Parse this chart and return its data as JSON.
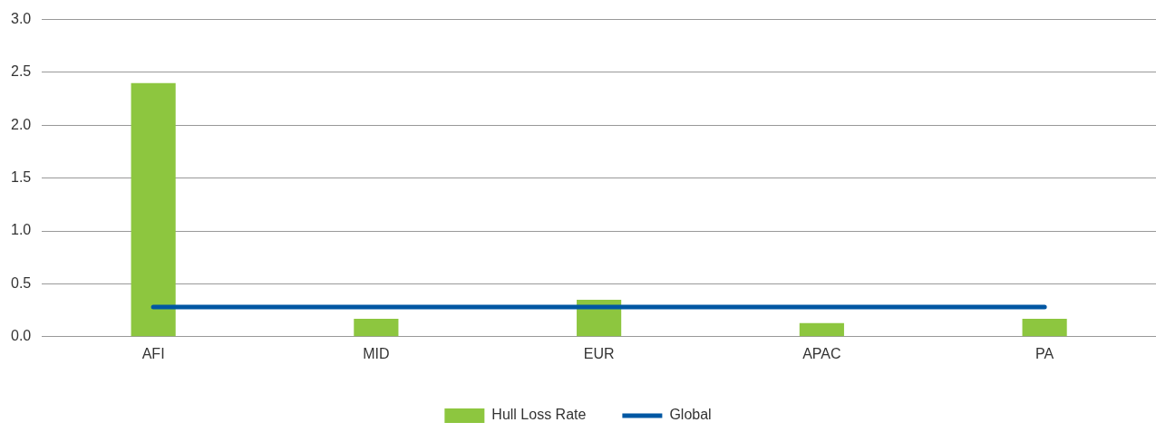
{
  "chart_data": {
    "type": "bar",
    "categories": [
      "AFI",
      "MID",
      "EUR",
      "APAC",
      "PA"
    ],
    "series": [
      {
        "name": "Hull Loss Rate",
        "color": "#8dc63f",
        "values": [
          2.4,
          0.17,
          0.35,
          0.13,
          0.17
        ]
      },
      {
        "name": "Global",
        "type": "line",
        "color": "#0057a3",
        "values": [
          0.28,
          0.28,
          0.28,
          0.28,
          0.28
        ]
      }
    ],
    "ylim": [
      0,
      3
    ],
    "yticks": [
      {
        "value": 0,
        "label": "0.0"
      },
      {
        "value": 0.5,
        "label": "0.5"
      },
      {
        "value": 1,
        "label": "1.0"
      },
      {
        "value": 1.5,
        "label": "1.5"
      },
      {
        "value": 2,
        "label": "2.0"
      },
      {
        "value": 2.5,
        "label": "2.5"
      },
      {
        "value": 3,
        "label": "3.0"
      }
    ],
    "grid": "y",
    "legend": "bottom",
    "marker": "none",
    "line_style": "solid"
  }
}
